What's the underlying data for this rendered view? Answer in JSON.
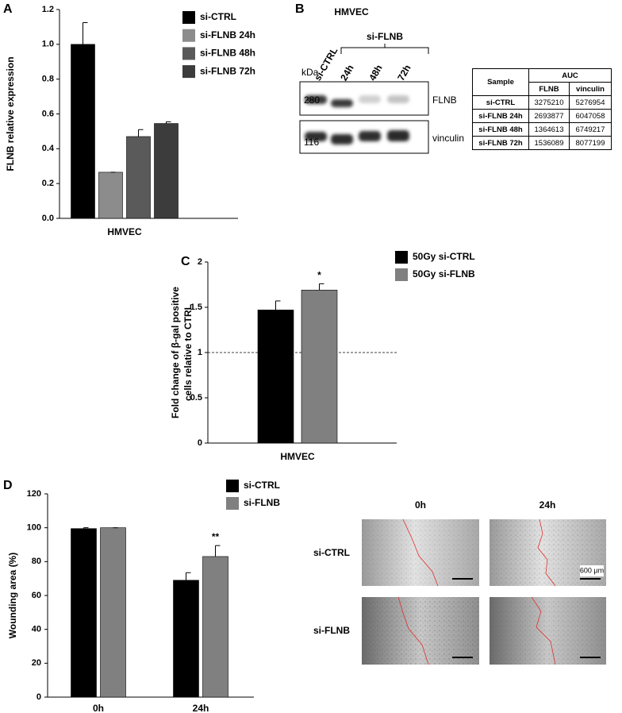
{
  "panel_labels": [
    "A",
    "B",
    "C",
    "D"
  ],
  "chart_data": [
    {
      "type": "bar",
      "y_label": "FLNB relative expression",
      "categories": [
        "HMVEC"
      ],
      "ylim": [
        0,
        1.2
      ],
      "yticks": [
        {
          "value": 0,
          "label": "0.0"
        },
        0.2,
        0.4,
        0.6,
        0.8,
        {
          "value": 1,
          "label": "1.0"
        },
        1.2
      ],
      "series": [
        {
          "name": "si-CTRL",
          "color": "#000000",
          "values": [
            1.0
          ],
          "errors": [
            0.125
          ]
        },
        {
          "name": "si-FLNB 24h",
          "color": "#8c8c8c",
          "values": [
            0.265
          ],
          "errors": [
            0
          ]
        },
        {
          "name": "si-FLNB 48h",
          "color": "#5a5a5a",
          "values": [
            0.47
          ],
          "errors": [
            0.04
          ]
        },
        {
          "name": "si-FLNB 72h",
          "color": "#3c3c3c",
          "values": [
            0.545
          ],
          "errors": [
            0.01
          ]
        }
      ]
    },
    {
      "type": "bar",
      "y_label": [
        "Fold change of β-gal positive",
        "cells relative to CTRL"
      ],
      "categories": [
        "HMVEC"
      ],
      "ylim": [
        0,
        2
      ],
      "yticks": [
        0,
        0.5,
        1,
        1.5,
        2
      ],
      "hline": 1,
      "series": [
        {
          "name": "50Gy si-CTRL",
          "color": "#000000",
          "values": [
            1.47
          ],
          "errors": [
            0.1
          ]
        },
        {
          "name": "50Gy si-FLNB",
          "color": "#808080",
          "values": [
            1.69
          ],
          "errors": [
            0.07
          ],
          "labels": [
            "*"
          ]
        }
      ]
    },
    {
      "type": "bar",
      "y_label": "Wounding area (%)",
      "categories": [
        "0h",
        "24h"
      ],
      "ylim": [
        0,
        120
      ],
      "yticks": [
        0,
        20,
        40,
        60,
        80,
        100,
        120
      ],
      "series": [
        {
          "name": "si-CTRL",
          "color": "#000000",
          "values": [
            99.5,
            69
          ],
          "errors": [
            0.5,
            4.5
          ]
        },
        {
          "name": "si-FLNB",
          "color": "#808080",
          "values": [
            100,
            83
          ],
          "errors": [
            0,
            6.5
          ],
          "labels": [
            null,
            "**"
          ]
        }
      ]
    }
  ],
  "blot": {
    "title": "HMVEC",
    "group_label": "si-FLNB",
    "lanes": [
      "si-CTRL",
      "24h",
      "48h",
      "72h"
    ],
    "unit": "kDa",
    "markers": [
      280,
      116
    ],
    "bands": [
      "FLNB",
      "vinculin"
    ]
  },
  "table": {
    "header": [
      "Sample",
      "AUC"
    ],
    "subheader": [
      "FLNB",
      "vinculin"
    ],
    "rows": [
      [
        "si-CTRL",
        3275210,
        5276954
      ],
      [
        "si-FLNB 24h",
        2693877,
        6047058
      ],
      [
        "si-FLNB 48h",
        1364613,
        6749217
      ],
      [
        "si-FLNB 72h",
        1536089,
        8077199
      ]
    ]
  },
  "images": {
    "columns": [
      "0h",
      "24h"
    ],
    "rows": [
      "si-CTRL",
      "si-FLNB"
    ],
    "scale_label": "600 μm"
  }
}
